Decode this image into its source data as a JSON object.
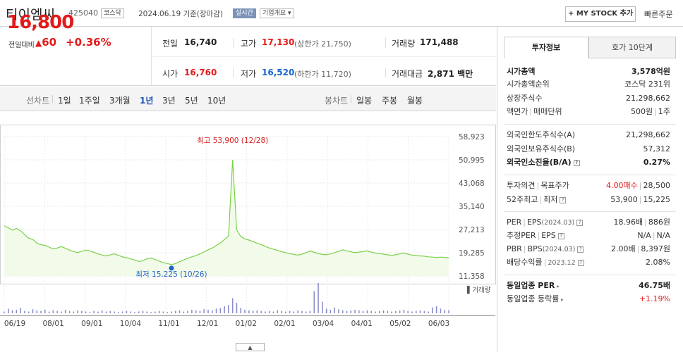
{
  "header": {
    "stock_name": "티이엠씨",
    "stock_code": "425040",
    "market": "코스닥",
    "date": "2024.06.19 기준(장마감)",
    "realtime_label": "실시간",
    "company_label": "기업개요",
    "mystock_label": "MY STOCK 추가",
    "quick_order_label": "빠른주문"
  },
  "price": {
    "current": "16,800",
    "change_label": "전일대비",
    "change_value": "60",
    "change_pct": "+0.36%"
  },
  "quote": {
    "prev_close_label": "전일",
    "prev_close": "16,740",
    "high_label": "고가",
    "high": "17,130",
    "upper_limit": "(상한가 21,750)",
    "volume_label": "거래량",
    "volume": "171,488",
    "open_label": "시가",
    "open": "16,760",
    "low_label": "저가",
    "low": "16,520",
    "lower_limit": "(하한가 11,720)",
    "amount_label": "거래대금",
    "amount": "2,871",
    "amount_unit": "백만"
  },
  "periods": {
    "line_label": "선차트",
    "line_tabs": [
      "1일",
      "1주일",
      "3개월",
      "1년",
      "3년",
      "5년",
      "10년"
    ],
    "active": "1년",
    "candle_label": "봉차트",
    "candle_tabs": [
      "일봉",
      "주봉",
      "월봉"
    ]
  },
  "chart_data": {
    "type": "line",
    "y_ticks": [
      "58,923",
      "50,995",
      "43,068",
      "35,140",
      "27,213",
      "19,285",
      "11,358"
    ],
    "ylim": [
      11358,
      58923
    ],
    "x_ticks": [
      "06/19",
      "08/01",
      "09/01",
      "10/04",
      "11/01",
      "12/01",
      "01/02",
      "02/01",
      "03/04",
      "04/01",
      "05/02",
      "06/03"
    ],
    "high_annotation": "최고 53,900 (12/28)",
    "low_annotation": "최저 15,225 (10/26)",
    "volume_label": "거래량",
    "values": [
      28500,
      27800,
      27000,
      27600,
      26800,
      25500,
      24200,
      23800,
      22600,
      22000,
      21800,
      21200,
      20600,
      20900,
      21400,
      20800,
      20200,
      19700,
      19300,
      19800,
      20200,
      19900,
      19400,
      18900,
      18500,
      18200,
      18600,
      18900,
      18400,
      17900,
      17600,
      17200,
      16800,
      16300,
      16600,
      17200,
      17500,
      17000,
      16400,
      15900,
      15600,
      15225,
      15600,
      16200,
      16800,
      17400,
      17900,
      18300,
      18900,
      19600,
      20300,
      20900,
      21800,
      22600,
      23800,
      25000,
      51000,
      27200,
      24800,
      24000,
      23600,
      23100,
      22500,
      22100,
      21500,
      20900,
      20500,
      20100,
      19700,
      19300,
      19000,
      18700,
      18500,
      18800,
      19300,
      19900,
      19400,
      19000,
      18700,
      18600,
      18900,
      19300,
      19800,
      20300,
      19900,
      19600,
      19300,
      19500,
      19700,
      19900,
      19500,
      19200,
      19000,
      18800,
      18600,
      18400,
      18600,
      18900,
      19200,
      18800,
      18500,
      18300,
      18200,
      18100,
      17900,
      17800,
      17700,
      17800,
      17700,
      17600
    ],
    "volume": [
      3,
      8,
      5,
      6,
      9,
      4,
      3,
      7,
      5,
      4,
      6,
      3,
      5,
      4,
      3,
      6,
      4,
      3,
      5,
      4,
      3,
      2,
      4,
      3,
      5,
      3,
      4,
      3,
      2,
      3,
      4,
      3,
      2,
      3,
      4,
      3,
      2,
      3,
      4,
      3,
      2,
      3,
      4,
      5,
      3,
      4,
      6,
      5,
      4,
      7,
      6,
      5,
      8,
      9,
      12,
      14,
      26,
      18,
      9,
      6,
      5,
      4,
      5,
      4,
      3,
      4,
      3,
      5,
      4,
      3,
      4,
      3,
      5,
      4,
      3,
      4,
      38,
      52,
      20,
      8,
      6,
      10,
      7,
      5,
      4,
      5,
      6,
      5,
      4,
      5,
      4,
      3,
      4,
      5,
      4,
      3,
      4,
      5,
      6,
      4,
      3,
      4,
      5,
      4,
      3,
      10,
      12,
      8,
      6,
      5
    ]
  },
  "invest": {
    "tab_invest": "투자정보",
    "tab_hoga": "호가 10단계",
    "market_cap_label": "시가총액",
    "market_cap": "3,578억원",
    "cap_rank_label": "시가총액순위",
    "cap_rank": "코스닥 231위",
    "shares_label": "상장주식수",
    "shares": "21,298,662",
    "par_label": "액면가",
    "unit_label": "매매단위",
    "par": "500원",
    "unit": "1주",
    "foreign_limit_label": "외국인한도주식수(A)",
    "foreign_limit": "21,298,662",
    "foreign_hold_label": "외국인보유주식수(B)",
    "foreign_hold": "57,312",
    "foreign_rate_label": "외국인소진율(B/A)",
    "foreign_rate": "0.27%",
    "opinion_label": "투자의견",
    "target_label": "목표주가",
    "opinion": "4.00매수",
    "target": "28,500",
    "w52_label": "52주최고",
    "w52_low_label": "최저",
    "w52_high": "53,900",
    "w52_low": "15,225",
    "per_label": "PER",
    "eps_label": "EPS",
    "eps_period": "(2024.03)",
    "per": "18.96배",
    "eps": "886원",
    "est_per_label": "추정PER",
    "est_eps_label": "EPS",
    "est_per": "N/A",
    "est_eps": "N/A",
    "pbr_label": "PBR",
    "bps_label": "BPS",
    "bps_period": "(2024.03)",
    "pbr": "2.00배",
    "bps": "8,397원",
    "div_label": "배당수익률",
    "div_period": "2023.12",
    "div": "2.08%",
    "sector_per_label": "동일업종 PER",
    "sector_per": "46.75배",
    "sector_chg_label": "동일업종 등락률",
    "sector_chg": "+1.19%"
  }
}
